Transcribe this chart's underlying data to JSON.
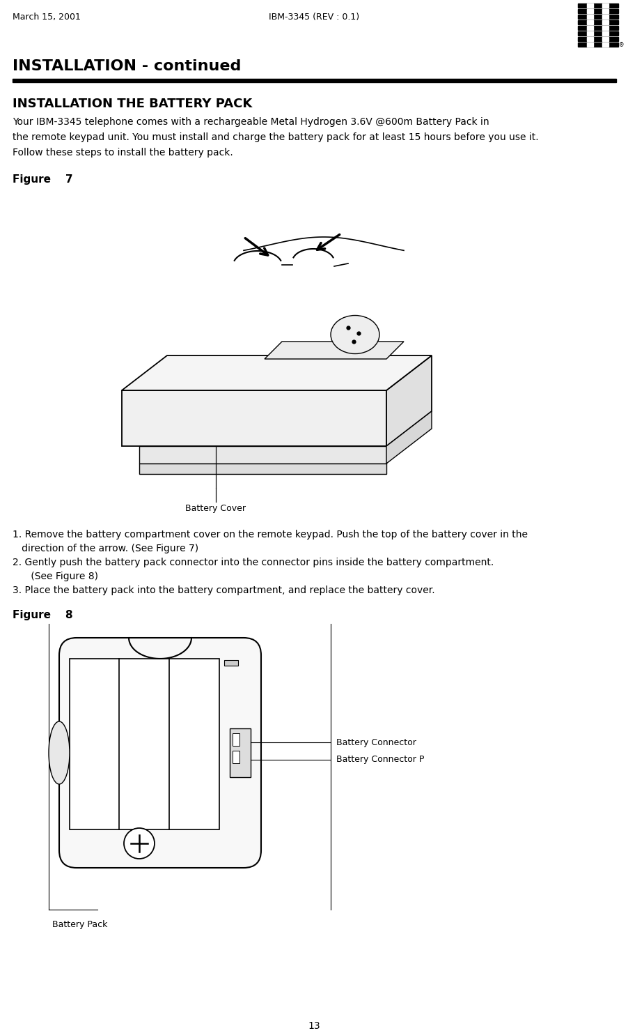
{
  "header_left": "March 15, 2001",
  "header_center": "IBM-3345 (REV : 0.1)",
  "page_number": "13",
  "section_title": "INSTALLATION - continued",
  "subsection_title": "INSTALLATION THE BATTERY PACK",
  "body_text": [
    "Your IBM-3345 telephone comes with a rechargeable Metal Hydrogen 3.6V @600m Battery Pack in",
    "the remote keypad unit. You must install and charge the battery pack for at least 15 hours before you use it.",
    "Follow these steps to install the battery pack."
  ],
  "figure7_label": "Figure    7",
  "figure8_label": "Figure    8",
  "instructions": [
    "1. Remove the battery compartment cover on the remote keypad. Push the top of the battery cover in the",
    "   direction of the arrow. (See Figure 7)",
    "2. Gently push the battery pack connector into the connector pins inside the battery compartment.",
    "      (See Figure 8)",
    "3. Place the battery pack into the battery compartment, and replace the battery cover."
  ],
  "fig7_caption": "Battery Cover",
  "fig8_caption": "Battery Pack",
  "fig8_label1": "Battery Connector",
  "fig8_label2": "Battery Connector P",
  "bg_color": "#ffffff",
  "text_color": "#000000",
  "header_fontsize": 9,
  "title_fontsize": 14,
  "subtitle_fontsize": 12,
  "body_fontsize": 10,
  "instruction_fontsize": 10,
  "figure_label_fontsize": 11
}
